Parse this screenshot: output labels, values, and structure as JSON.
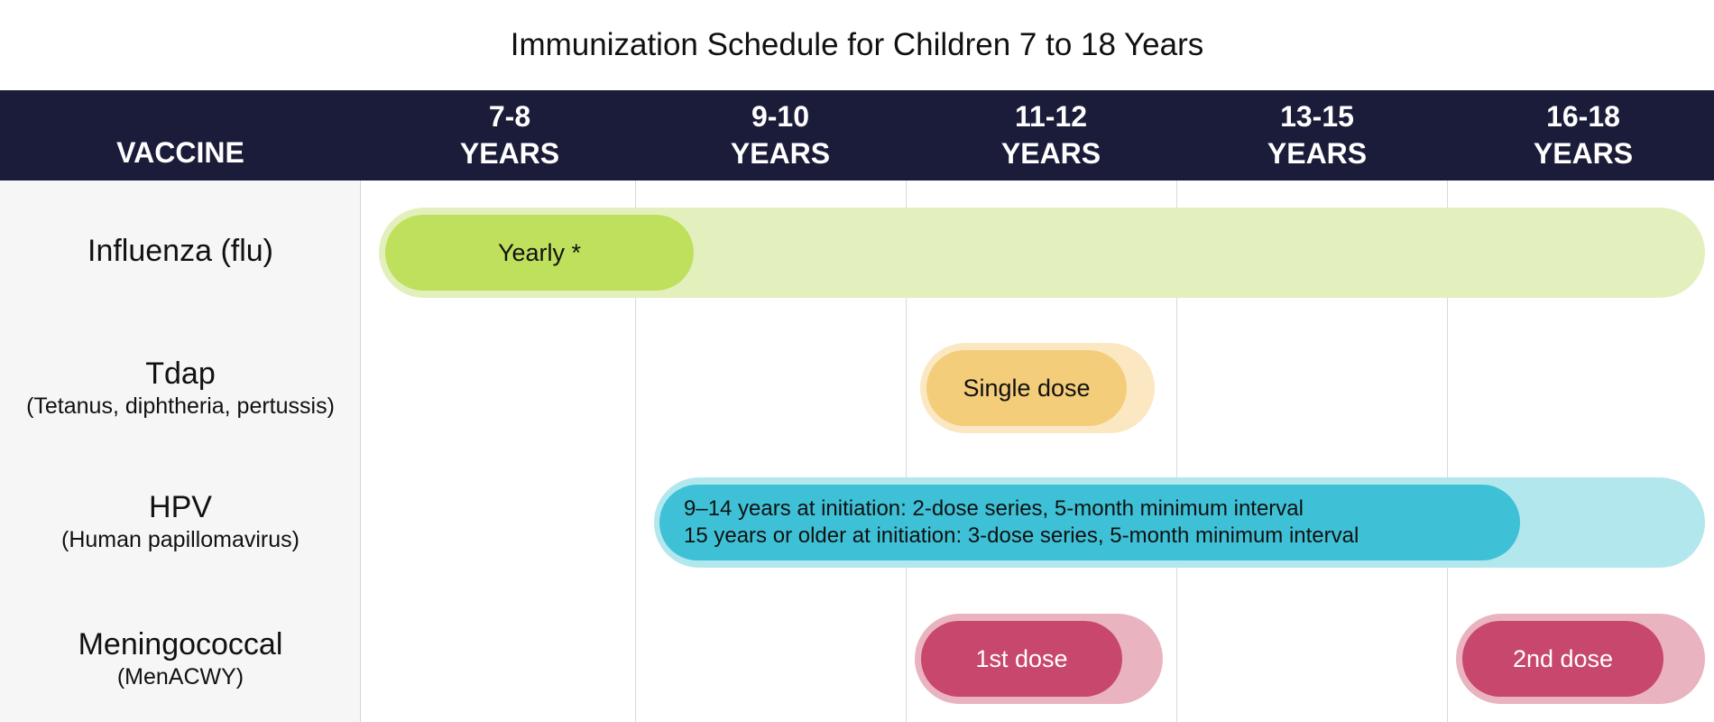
{
  "title": "Immunization Schedule for Children 7 to 18 Years",
  "header": {
    "vaccine_label": "VACCINE",
    "age_groups": [
      {
        "range": "7-8",
        "unit": "YEARS"
      },
      {
        "range": "9-10",
        "unit": "YEARS"
      },
      {
        "range": "11-12",
        "unit": "YEARS"
      },
      {
        "range": "13-15",
        "unit": "YEARS"
      },
      {
        "range": "16-18",
        "unit": "YEARS"
      }
    ]
  },
  "vaccines": [
    {
      "name": "Influenza (flu)",
      "subtitle": "",
      "doses": [
        "Yearly *"
      ]
    },
    {
      "name": "Tdap",
      "subtitle": "(Tetanus, diphtheria, pertussis)",
      "doses": [
        "Single dose"
      ]
    },
    {
      "name": "HPV",
      "subtitle": "(Human papillomavirus)",
      "doses": [
        "9–14 years at initiation: 2-dose series, 5-month minimum interval",
        "15 years or older at initiation: 3-dose series, 5-month minimum interval"
      ]
    },
    {
      "name": "Meningococcal",
      "subtitle": "(MenACWY)",
      "doses": [
        "1st dose",
        "2nd dose"
      ]
    }
  ],
  "colors": {
    "header_bg": "#1b1c39",
    "flu": "#bfe05d",
    "flu_band": "#e3f0bd",
    "tdap": "#f4cd7a",
    "tdap_band": "#fbe8c3",
    "hpv": "#3ec1d6",
    "hpv_band": "#b2e7ee",
    "men": "#c8476d",
    "men_band": "#e9b3c0"
  }
}
